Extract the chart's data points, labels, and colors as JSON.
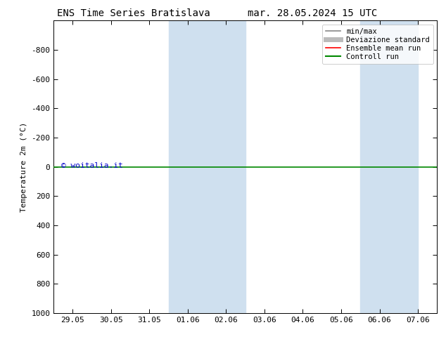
{
  "title_left": "ENS Time Series Bratislava",
  "title_right": "mar. 28.05.2024 15 UTC",
  "ylabel": "Temperature 2m (°C)",
  "watermark": "© woitalia.it",
  "ylim_bottom": 1000,
  "ylim_top": -1000,
  "yticks": [
    -800,
    -600,
    -400,
    -200,
    0,
    200,
    400,
    600,
    800,
    1000
  ],
  "xtick_labels": [
    "29.05",
    "30.05",
    "31.05",
    "01.06",
    "02.06",
    "03.06",
    "04.06",
    "05.06",
    "06.06",
    "07.06"
  ],
  "xtick_positions": [
    0,
    1,
    2,
    3,
    4,
    5,
    6,
    7,
    8,
    9
  ],
  "shade_ranges": [
    [
      3.0,
      5.0
    ],
    [
      8.0,
      9.5
    ]
  ],
  "shade_color": "#cfe0ef",
  "background_color": "#ffffff",
  "plot_bg_color": "#ffffff",
  "green_line_y": 0,
  "green_line_color": "#008800",
  "legend_items": [
    {
      "label": "min/max",
      "color": "#888888",
      "lw": 1.2
    },
    {
      "label": "Deviazione standard",
      "color": "#bbbbbb",
      "lw": 5
    },
    {
      "label": "Ensemble mean run",
      "color": "#ff0000",
      "lw": 1.2
    },
    {
      "label": "Controll run",
      "color": "#008800",
      "lw": 1.5
    }
  ],
  "watermark_color": "#0000cc",
  "title_fontsize": 10,
  "label_fontsize": 8,
  "tick_fontsize": 8,
  "legend_fontsize": 7.5
}
